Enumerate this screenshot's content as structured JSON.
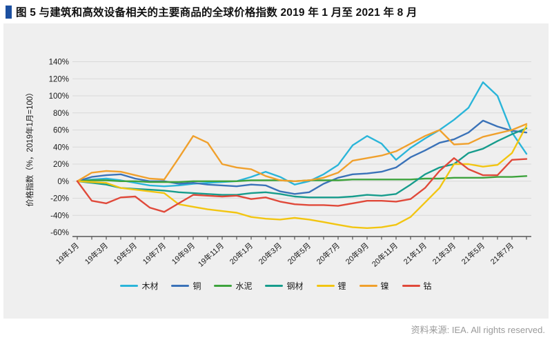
{
  "title": {
    "text": "图 5 与建筑和高效设备相关的主要商品的全球价格指数 2019 年 1 月至 2021 年 8 月"
  },
  "source_note": "资料来源: IEA. All rights reserved.",
  "chart_data": {
    "type": "line",
    "title": "与建筑和高效设备相关的主要商品的全球价格指数 2019 年 1 月至 2021 年 8 月",
    "xlabel": "",
    "ylabel": "价格指数（%，2019年1月=100）",
    "ylim": [
      -60,
      140
    ],
    "ytick_step": 20,
    "ytick_suffix": "%",
    "grid": true,
    "legend_position": "bottom",
    "x": [
      "19年1月",
      "19年2月",
      "19年3月",
      "19年4月",
      "19年5月",
      "19年6月",
      "19年7月",
      "19年8月",
      "19年9月",
      "19年10月",
      "19年11月",
      "19年12月",
      "20年1月",
      "20年2月",
      "20年3月",
      "20年4月",
      "20年5月",
      "20年6月",
      "20年7月",
      "20年8月",
      "20年9月",
      "20年10月",
      "20年11月",
      "20年12月",
      "21年1月",
      "21年2月",
      "21年3月",
      "21年4月",
      "21年5月",
      "21年6月",
      "21年7月",
      "21年8月"
    ],
    "xtick_labels_shown": [
      "19年1月",
      "19年3月",
      "19年5月",
      "19年7月",
      "19年9月",
      "19年11月",
      "20年1月",
      "20年3月",
      "20年5月",
      "20年7月",
      "20年9月",
      "20年11月",
      "21年1月",
      "21年3月",
      "21年5月",
      "21年7月"
    ],
    "series": [
      {
        "key": "lumber",
        "name": "木材",
        "color": "#2ab5d9",
        "values": [
          0,
          2,
          3,
          1,
          -2,
          -5,
          -6,
          -5,
          -3,
          -2,
          -1,
          0,
          5,
          11,
          5,
          -4,
          0,
          8,
          19,
          42,
          53,
          44,
          25,
          39,
          50,
          60,
          72,
          86,
          116,
          100,
          57,
          32
        ]
      },
      {
        "key": "copper",
        "name": "铜",
        "color": "#3a72b8",
        "values": [
          0,
          5,
          7,
          8,
          3,
          0,
          0,
          -3,
          -2,
          -4,
          -5,
          -6,
          -4,
          -5,
          -12,
          -15,
          -13,
          -3,
          4,
          8,
          9,
          11,
          16,
          28,
          36,
          45,
          49,
          57,
          71,
          64,
          59,
          57
        ]
      },
      {
        "key": "cement",
        "name": "水泥",
        "color": "#3da33c",
        "values": [
          0,
          1,
          1,
          0,
          0,
          -1,
          -1,
          -1,
          0,
          0,
          0,
          0,
          1,
          1,
          1,
          0,
          1,
          1,
          1,
          2,
          2,
          2,
          2,
          2,
          3,
          3,
          4,
          4,
          4,
          5,
          5,
          6
        ]
      },
      {
        "key": "steel",
        "name": "钢材",
        "color": "#169c8c",
        "values": [
          0,
          -2,
          -4,
          -8,
          -9,
          -10,
          -11,
          -13,
          -14,
          -15,
          -16,
          -16,
          -14,
          -13,
          -15,
          -18,
          -19,
          -19,
          -19,
          -18,
          -16,
          -17,
          -15,
          -4,
          8,
          16,
          20,
          33,
          38,
          47,
          55,
          62
        ]
      },
      {
        "key": "lithium",
        "name": "锂",
        "color": "#f2c511",
        "values": [
          0,
          -1,
          -2,
          -8,
          -10,
          -12,
          -14,
          -27,
          -30,
          -33,
          -35,
          -37,
          -42,
          -44,
          -45,
          -43,
          -45,
          -48,
          -51,
          -54,
          -55,
          -54,
          -51,
          -42,
          -25,
          -8,
          20,
          20,
          17,
          19,
          33,
          65
        ]
      },
      {
        "key": "nickel",
        "name": "镍",
        "color": "#f0a02c",
        "values": [
          0,
          10,
          12,
          11,
          7,
          3,
          2,
          27,
          53,
          45,
          20,
          16,
          14,
          6,
          1,
          0,
          1,
          4,
          10,
          24,
          27,
          30,
          35,
          44,
          53,
          60,
          43,
          44,
          52,
          56,
          60,
          67
        ]
      },
      {
        "key": "cobalt",
        "name": "钴",
        "color": "#e0493a",
        "values": [
          0,
          -23,
          -26,
          -19,
          -18,
          -31,
          -36,
          -26,
          -16,
          -17,
          -18,
          -17,
          -21,
          -19,
          -24,
          -27,
          -28,
          -28,
          -29,
          -26,
          -23,
          -23,
          -24,
          -21,
          -8,
          12,
          27,
          14,
          7,
          7,
          25,
          26
        ]
      }
    ]
  },
  "style": {
    "panel_bg": "#efefef",
    "grid_color": "#d9d9d9",
    "axis_color": "#555555",
    "tick_text_color": "#1a1a1a",
    "title_marker_color": "#1c4fa0",
    "source_color": "#9a9a9a"
  }
}
